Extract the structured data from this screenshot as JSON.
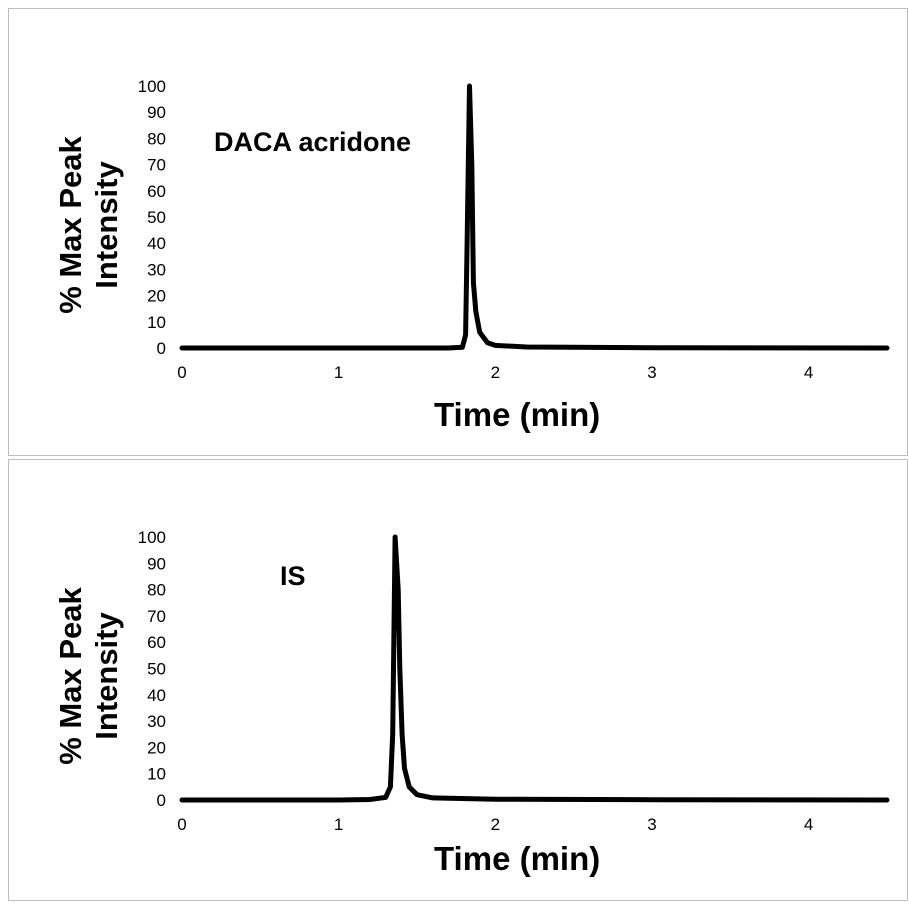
{
  "chart_data": [
    {
      "type": "line",
      "annotation": "DACA acridone",
      "xlabel": "Time (min)",
      "ylabel_lines": [
        "% Max Peak",
        "Intensity"
      ],
      "xlim": [
        0,
        4.5
      ],
      "ylim": [
        0,
        100
      ],
      "x_ticks": [
        "0",
        "1",
        "2",
        "3",
        "4"
      ],
      "y_ticks": [
        "0",
        "10",
        "20",
        "30",
        "40",
        "50",
        "60",
        "70",
        "80",
        "90",
        "100"
      ],
      "grid": false,
      "series": [
        {
          "x": [
            0,
            1.0,
            1.7,
            1.79,
            1.81,
            1.82,
            1.835,
            1.85,
            1.86,
            1.875,
            1.9,
            1.95,
            2.0,
            2.2,
            3.0,
            4.5
          ],
          "y": [
            0,
            0,
            0,
            0.3,
            5,
            40,
            100,
            70,
            25,
            14,
            6,
            2,
            1,
            0.4,
            0.1,
            0
          ]
        }
      ]
    },
    {
      "type": "line",
      "annotation": "IS",
      "xlabel": "Time (min)",
      "ylabel_lines": [
        "% Max Peak",
        "Intensity"
      ],
      "xlim": [
        0,
        4.5
      ],
      "ylim": [
        0,
        100
      ],
      "x_ticks": [
        "0",
        "1",
        "2",
        "3",
        "4"
      ],
      "y_ticks": [
        "0",
        "10",
        "20",
        "30",
        "40",
        "50",
        "60",
        "70",
        "80",
        "90",
        "100"
      ],
      "grid": false,
      "series": [
        {
          "x": [
            0,
            1.0,
            1.2,
            1.3,
            1.33,
            1.345,
            1.36,
            1.38,
            1.39,
            1.405,
            1.42,
            1.45,
            1.5,
            1.6,
            2.0,
            3.0,
            4.5
          ],
          "y": [
            0,
            0,
            0.2,
            1,
            5,
            25,
            100,
            80,
            50,
            25,
            12,
            5,
            2,
            0.8,
            0.3,
            0.1,
            0
          ]
        }
      ]
    }
  ]
}
